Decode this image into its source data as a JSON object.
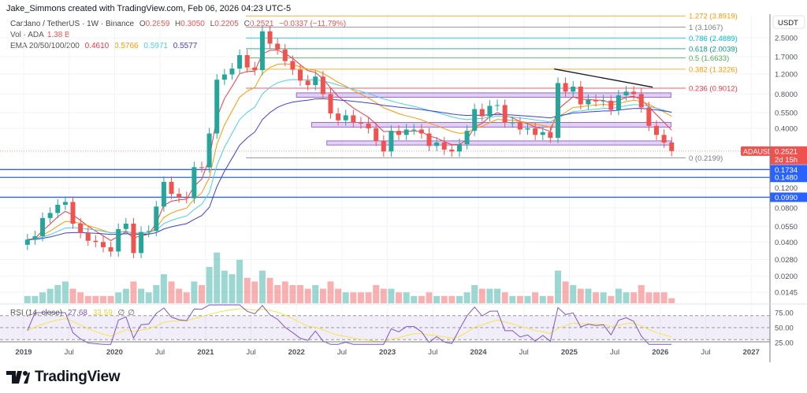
{
  "header": {
    "credit": "Jake_Simmons created with TradingView.com, Feb 06, 2026 04:23 UTC-5"
  },
  "legend": {
    "symbol": "Cardano / TetherUS · 1W · Binance",
    "o_label": "O",
    "o": "0.2859",
    "h_label": "H",
    "h": "0.3050",
    "l_label": "L",
    "l": "0.2205",
    "c_label": "C",
    "c": "0.2521",
    "change": "−0.0337 (−11.79%)",
    "vol_label": "Vol · ADA",
    "vol": "1.38 B",
    "ema_label": "EMA 20/50/100/200",
    "ema20": "0.4610",
    "ema50": "0.5766",
    "ema100": "0.5971",
    "ema200": "0.5577",
    "rsi_label": "RSI (14, close)",
    "rsi": "27.68",
    "rsi_ma": "33.59",
    "rsi_na1": "∅",
    "rsi_na2": "∅"
  },
  "colors": {
    "up": "#26a69a",
    "down": "#ef5350",
    "ema20": "#f23645",
    "ema50": "#ff9800",
    "ema100": "#4dd0e1",
    "ema200": "#3f3fdc",
    "rsi": "#7e57c2",
    "rsi_ma": "#f5e44a",
    "blue_level": "#2962ff",
    "box": "#9c6ad0"
  },
  "price_axis": {
    "unit": "USDT",
    "ticks": [
      "2.5000",
      "1.7000",
      "1.2000",
      "0.8000",
      "0.5500",
      "0.4000",
      "0.1200",
      "0.0800",
      "0.0550",
      "0.0400",
      "0.0280",
      "0.0200",
      "0.0145"
    ],
    "scale": "log"
  },
  "rsi_axis": {
    "ticks": [
      "75.00",
      "50.00",
      "25.00"
    ]
  },
  "time_axis": {
    "ticks": [
      "2019",
      "Jul",
      "2020",
      "Jul",
      "2021",
      "Jul",
      "2022",
      "Jul",
      "2023",
      "Jul",
      "2024",
      "Jul",
      "2025",
      "Jul",
      "2026",
      "Jul",
      "2027"
    ]
  },
  "last_price": {
    "symbol": "ADAUSDT",
    "price": "0.2521",
    "countdown": "2d 15h"
  },
  "levels": [
    {
      "label": "0.1734",
      "price": 0.1734
    },
    {
      "label": "0.1480",
      "price": 0.148
    },
    {
      "label": "0.0990",
      "price": 0.099
    }
  ],
  "fib": [
    {
      "label": "1.272 (3.8919)",
      "price": 3.8919,
      "color": "#ff9800"
    },
    {
      "label": "1 (3.1067)",
      "price": 3.1067,
      "color": "#787b86"
    },
    {
      "label": "0.786 (2.4889)",
      "price": 2.4889,
      "color": "#00bcd4"
    },
    {
      "label": "0.618 (2.0039)",
      "price": 2.0039,
      "color": "#089981"
    },
    {
      "label": "0.5 (1.6633)",
      "price": 1.6633,
      "color": "#4caf50"
    },
    {
      "label": "0.382 (1.3226)",
      "price": 1.3226,
      "color": "#ff9800"
    },
    {
      "label": "0.236 (0.9012)",
      "price": 0.9012,
      "color": "#f23645"
    },
    {
      "label": "0 (0.2199)",
      "price": 0.2199,
      "color": "#787b86"
    }
  ],
  "chart_data": {
    "type": "candlestick",
    "interval": "monthly approximation of weekly chart",
    "start": "2019-01",
    "closes": [
      0.042,
      0.045,
      0.065,
      0.072,
      0.085,
      0.09,
      0.058,
      0.048,
      0.041,
      0.04,
      0.036,
      0.033,
      0.052,
      0.058,
      0.032,
      0.049,
      0.05,
      0.082,
      0.135,
      0.106,
      0.099,
      0.097,
      0.182,
      0.181,
      0.36,
      1.07,
      1.19,
      1.34,
      1.76,
      1.37,
      1.3,
      2.85,
      2.22,
      1.97,
      1.56,
      1.31,
      1.05,
      0.96,
      1.14,
      0.8,
      0.54,
      0.47,
      0.52,
      0.45,
      0.44,
      0.4,
      0.31,
      0.25,
      0.38,
      0.35,
      0.39,
      0.39,
      0.36,
      0.28,
      0.3,
      0.26,
      0.25,
      0.29,
      0.38,
      0.59,
      0.51,
      0.63,
      0.64,
      0.45,
      0.45,
      0.39,
      0.4,
      0.35,
      0.37,
      0.33,
      1.0,
      0.84,
      0.93,
      0.65,
      0.71,
      0.69,
      0.7,
      0.58,
      0.78,
      0.84,
      0.8,
      0.61,
      0.42,
      0.35,
      0.3,
      0.2521
    ],
    "volume_b": [
      2,
      2,
      3,
      4,
      5,
      6,
      4,
      3,
      2,
      2,
      2,
      2,
      3,
      4,
      6,
      4,
      3,
      5,
      8,
      6,
      4,
      3,
      6,
      5,
      10,
      14,
      9,
      8,
      12,
      7,
      6,
      9,
      7,
      5,
      6,
      5,
      5,
      4,
      5,
      4,
      6,
      4,
      3,
      3,
      3,
      3,
      5,
      4,
      4,
      3,
      3,
      2,
      2,
      3,
      2,
      2,
      2,
      2,
      3,
      5,
      4,
      4,
      4,
      3,
      2,
      2,
      2,
      3,
      2,
      2,
      9,
      6,
      5,
      4,
      4,
      3,
      3,
      2,
      4,
      3,
      3,
      5,
      3,
      3,
      3,
      1.38
    ],
    "trendline": [
      {
        "date": "2024-11",
        "price": 1.33
      },
      {
        "date": "2025-12",
        "price": 0.92
      }
    ],
    "zones": [
      {
        "from": "2022-01",
        "to": "2026-02",
        "low": 0.75,
        "high": 0.82
      },
      {
        "from": "2022-03",
        "to": "2026-02",
        "low": 0.41,
        "high": 0.45
      },
      {
        "from": "2022-05",
        "to": "2026-02",
        "low": 0.285,
        "high": 0.31
      }
    ]
  }
}
